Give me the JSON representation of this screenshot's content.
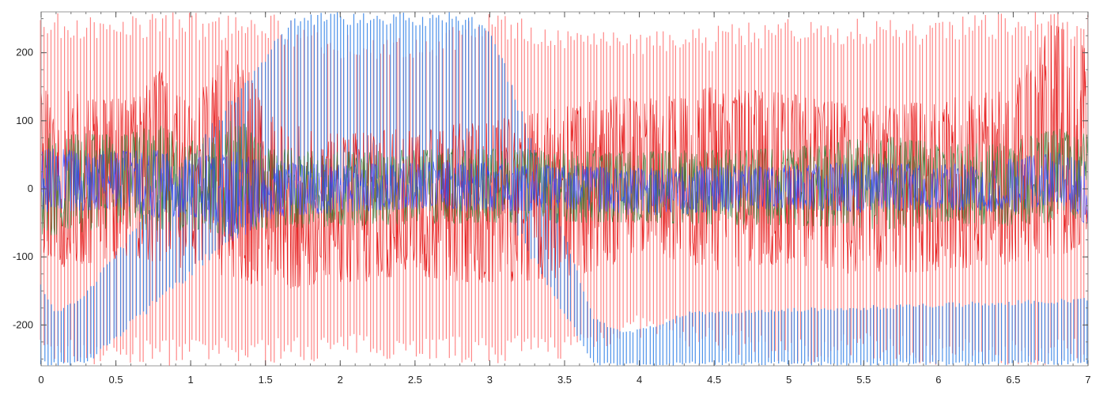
{
  "chart_data": {
    "type": "line",
    "title": "",
    "xlabel": "",
    "ylabel": "",
    "xlim": [
      0,
      7
    ],
    "ylim": [
      -260,
      260
    ],
    "x_ticks": [
      0,
      0.5,
      1,
      1.5,
      2,
      2.5,
      3,
      3.5,
      4,
      4.5,
      5,
      5.5,
      6,
      6.5,
      7
    ],
    "x_tick_labels": [
      "0",
      "0.5",
      "1",
      "1.5",
      "2",
      "2.5",
      "3",
      "3.5",
      "4",
      "4.5",
      "5",
      "5.5",
      "6",
      "6.5",
      "7"
    ],
    "y_ticks": [
      -200,
      -100,
      0,
      100,
      200
    ],
    "y_tick_labels": [
      "-200",
      "-100",
      "0",
      "100",
      "200"
    ],
    "grid": false,
    "legend": "none",
    "series": [
      {
        "color": "#ff7a7a",
        "role": "spike",
        "x": [
          0,
          0.5,
          0.8,
          1,
          1.3,
          1.5,
          2,
          2.5,
          3,
          3.5,
          4,
          4.5,
          5,
          5.5,
          6,
          6.5,
          6.8,
          7
        ],
        "y_upper": [
          260,
          260,
          260,
          260,
          260,
          260,
          230,
          220,
          260,
          240,
          230,
          240,
          250,
          250,
          250,
          260,
          260,
          260
        ],
        "y_lower": [
          -260,
          -260,
          -260,
          -260,
          -260,
          -260,
          -250,
          -250,
          -260,
          -250,
          -220,
          -240,
          -260,
          -250,
          -260,
          -260,
          -260,
          -260
        ]
      },
      {
        "color": "#3a86e8",
        "role": "spike",
        "x": [
          0,
          0.1,
          0.3,
          1.7,
          1.9,
          2.2,
          2.5,
          2.8,
          3.0,
          3.7,
          3.9,
          4.1,
          4.3,
          7
        ],
        "y_upper": [
          -140,
          -180,
          -150,
          260,
          260,
          260,
          260,
          260,
          250,
          -190,
          -210,
          -200,
          -180,
          -160
        ],
        "y_lower": [
          -260,
          -260,
          -260,
          0,
          0,
          0,
          0,
          0,
          0,
          -260,
          -260,
          -260,
          -260,
          -260
        ]
      },
      {
        "color": "#e00000",
        "role": "envelope",
        "x": [
          0,
          0.3,
          0.6,
          0.8,
          1,
          1.3,
          1.5,
          2,
          2.5,
          3,
          3.5,
          3.8,
          4,
          4.5,
          5,
          5.5,
          6,
          6.5,
          6.8,
          7
        ],
        "y_upper": [
          150,
          140,
          130,
          175,
          120,
          225,
          110,
          80,
          90,
          100,
          120,
          140,
          130,
          150,
          140,
          120,
          130,
          150,
          260,
          200
        ],
        "y_lower": [
          -120,
          -110,
          -100,
          -110,
          -120,
          -130,
          -150,
          -140,
          -130,
          -140,
          -130,
          -120,
          -90,
          -120,
          -110,
          -130,
          -120,
          -110,
          -100,
          -80
        ]
      },
      {
        "color": "#2e7d32",
        "role": "envelope",
        "x": [
          0,
          0.5,
          0.8,
          1,
          1.3,
          1.5,
          2,
          3,
          4,
          5,
          5.7,
          6,
          6.5,
          6.8,
          7
        ],
        "y_upper": [
          85,
          80,
          95,
          70,
          110,
          60,
          55,
          60,
          55,
          60,
          80,
          65,
          70,
          90,
          80
        ],
        "y_lower": [
          -70,
          -60,
          -65,
          -60,
          -70,
          -60,
          -55,
          -50,
          -50,
          -55,
          -60,
          -50,
          -55,
          -50,
          -40
        ]
      },
      {
        "color": "#3344ff",
        "role": "envelope",
        "x": [
          0,
          0.5,
          0.8,
          1,
          1.3,
          1.5,
          2,
          2.5,
          3,
          3.5,
          4,
          4.5,
          5,
          5.5,
          6,
          6.5,
          6.8,
          7
        ],
        "y_upper": [
          60,
          55,
          60,
          45,
          55,
          40,
          35,
          40,
          40,
          35,
          30,
          35,
          35,
          40,
          35,
          45,
          55,
          45
        ],
        "y_lower": [
          -35,
          -30,
          -45,
          -40,
          -80,
          -45,
          -35,
          -30,
          -35,
          -30,
          -40,
          -35,
          -30,
          -35,
          -30,
          -35,
          -20,
          -55
        ]
      }
    ]
  }
}
